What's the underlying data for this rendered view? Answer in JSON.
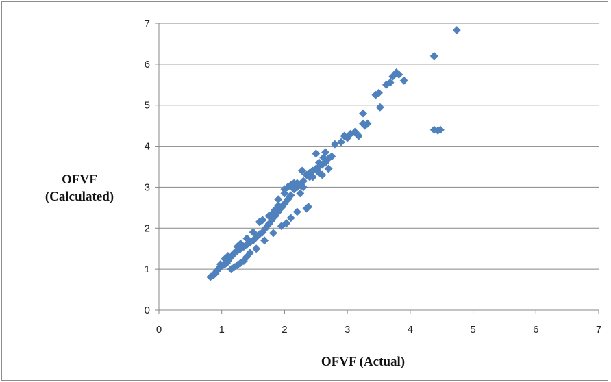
{
  "chart_data": {
    "type": "scatter",
    "title": "",
    "xlabel": "OFVF (Actual)",
    "ylabel_lines": [
      "OFVF",
      "(Calculated)"
    ],
    "xlim": [
      0,
      7
    ],
    "ylim": [
      0,
      7
    ],
    "xticks": [
      "0",
      "1",
      "2",
      "3",
      "4",
      "5",
      "6",
      "7"
    ],
    "yticks": [
      "0",
      "1",
      "2",
      "3",
      "4",
      "5",
      "6",
      "7"
    ],
    "grid": "horizontal",
    "marker": "diamond",
    "color": "#4f81bd",
    "points": [
      [
        0.82,
        0.81
      ],
      [
        0.86,
        0.85
      ],
      [
        0.88,
        0.87
      ],
      [
        0.9,
        0.9
      ],
      [
        0.92,
        0.95
      ],
      [
        0.95,
        1.0
      ],
      [
        0.97,
        1.05
      ],
      [
        1.0,
        1.08
      ],
      [
        1.02,
        1.1
      ],
      [
        1.05,
        1.12
      ],
      [
        1.08,
        1.15
      ],
      [
        1.1,
        1.2
      ],
      [
        1.12,
        1.25
      ],
      [
        1.15,
        1.3
      ],
      [
        1.18,
        1.35
      ],
      [
        1.2,
        1.4
      ],
      [
        1.25,
        1.45
      ],
      [
        1.3,
        1.5
      ],
      [
        1.35,
        1.55
      ],
      [
        1.4,
        1.6
      ],
      [
        1.45,
        1.65
      ],
      [
        1.5,
        1.7
      ],
      [
        1.55,
        1.78
      ],
      [
        1.6,
        1.85
      ],
      [
        1.65,
        1.9
      ],
      [
        1.7,
        2.0
      ],
      [
        1.75,
        2.1
      ],
      [
        1.8,
        2.2
      ],
      [
        1.85,
        2.3
      ],
      [
        1.9,
        2.4
      ],
      [
        1.95,
        2.5
      ],
      [
        2.0,
        2.6
      ],
      [
        2.05,
        2.7
      ],
      [
        2.1,
        2.8
      ],
      [
        2.0,
        2.95
      ],
      [
        2.05,
        3.0
      ],
      [
        2.1,
        3.05
      ],
      [
        2.15,
        3.1
      ],
      [
        2.2,
        3.0
      ],
      [
        2.25,
        3.05
      ],
      [
        2.3,
        3.15
      ],
      [
        2.28,
        3.4
      ],
      [
        2.35,
        3.3
      ],
      [
        2.4,
        3.35
      ],
      [
        2.45,
        3.4
      ],
      [
        2.5,
        3.45
      ],
      [
        2.55,
        3.5
      ],
      [
        2.6,
        3.55
      ],
      [
        2.65,
        3.6
      ],
      [
        2.7,
        3.7
      ],
      [
        2.5,
        3.82
      ],
      [
        2.65,
        3.85
      ],
      [
        2.8,
        4.05
      ],
      [
        2.9,
        4.1
      ],
      [
        2.95,
        4.25
      ],
      [
        3.05,
        4.3
      ],
      [
        3.12,
        4.35
      ],
      [
        3.18,
        4.25
      ],
      [
        3.25,
        4.55
      ],
      [
        3.28,
        4.5
      ],
      [
        3.25,
        4.8
      ],
      [
        3.45,
        5.25
      ],
      [
        3.5,
        5.3
      ],
      [
        3.52,
        4.95
      ],
      [
        3.62,
        5.5
      ],
      [
        3.68,
        5.55
      ],
      [
        3.72,
        5.7
      ],
      [
        3.78,
        5.8
      ],
      [
        3.82,
        5.75
      ],
      [
        3.9,
        5.6
      ],
      [
        4.38,
        6.2
      ],
      [
        4.38,
        4.4
      ],
      [
        4.44,
        4.38
      ],
      [
        4.48,
        4.4
      ],
      [
        4.74,
        6.83
      ],
      [
        1.15,
        1.0
      ],
      [
        1.2,
        1.05
      ],
      [
        1.25,
        1.1
      ],
      [
        1.3,
        1.15
      ],
      [
        1.35,
        1.2
      ],
      [
        1.4,
        1.3
      ],
      [
        1.45,
        1.4
      ],
      [
        1.55,
        1.5
      ],
      [
        1.68,
        1.7
      ],
      [
        1.82,
        1.88
      ],
      [
        1.95,
        2.05
      ],
      [
        2.03,
        2.12
      ],
      [
        2.1,
        2.25
      ],
      [
        2.2,
        2.4
      ],
      [
        2.35,
        2.48
      ],
      [
        2.38,
        2.52
      ],
      [
        2.25,
        2.85
      ],
      [
        2.3,
        3.0
      ],
      [
        2.4,
        3.25
      ],
      [
        2.55,
        3.35
      ],
      [
        2.6,
        3.3
      ],
      [
        2.7,
        3.45
      ],
      [
        1.75,
        2.3
      ],
      [
        1.8,
        2.35
      ],
      [
        1.85,
        2.45
      ],
      [
        1.9,
        2.55
      ],
      [
        1.6,
        2.15
      ],
      [
        1.65,
        2.2
      ],
      [
        1.5,
        1.9
      ],
      [
        1.4,
        1.75
      ],
      [
        1.3,
        1.62
      ],
      [
        1.25,
        1.55
      ],
      [
        1.1,
        1.32
      ],
      [
        1.05,
        1.25
      ],
      [
        0.98,
        1.12
      ],
      [
        1.9,
        2.7
      ],
      [
        2.0,
        2.85
      ],
      [
        2.15,
        2.95
      ],
      [
        2.45,
        3.25
      ],
      [
        2.55,
        3.6
      ],
      [
        2.62,
        3.72
      ],
      [
        2.75,
        3.75
      ],
      [
        3.15,
        4.3
      ],
      [
        3.32,
        4.55
      ],
      [
        3.0,
        4.2
      ],
      [
        2.2,
        3.1
      ]
    ]
  }
}
